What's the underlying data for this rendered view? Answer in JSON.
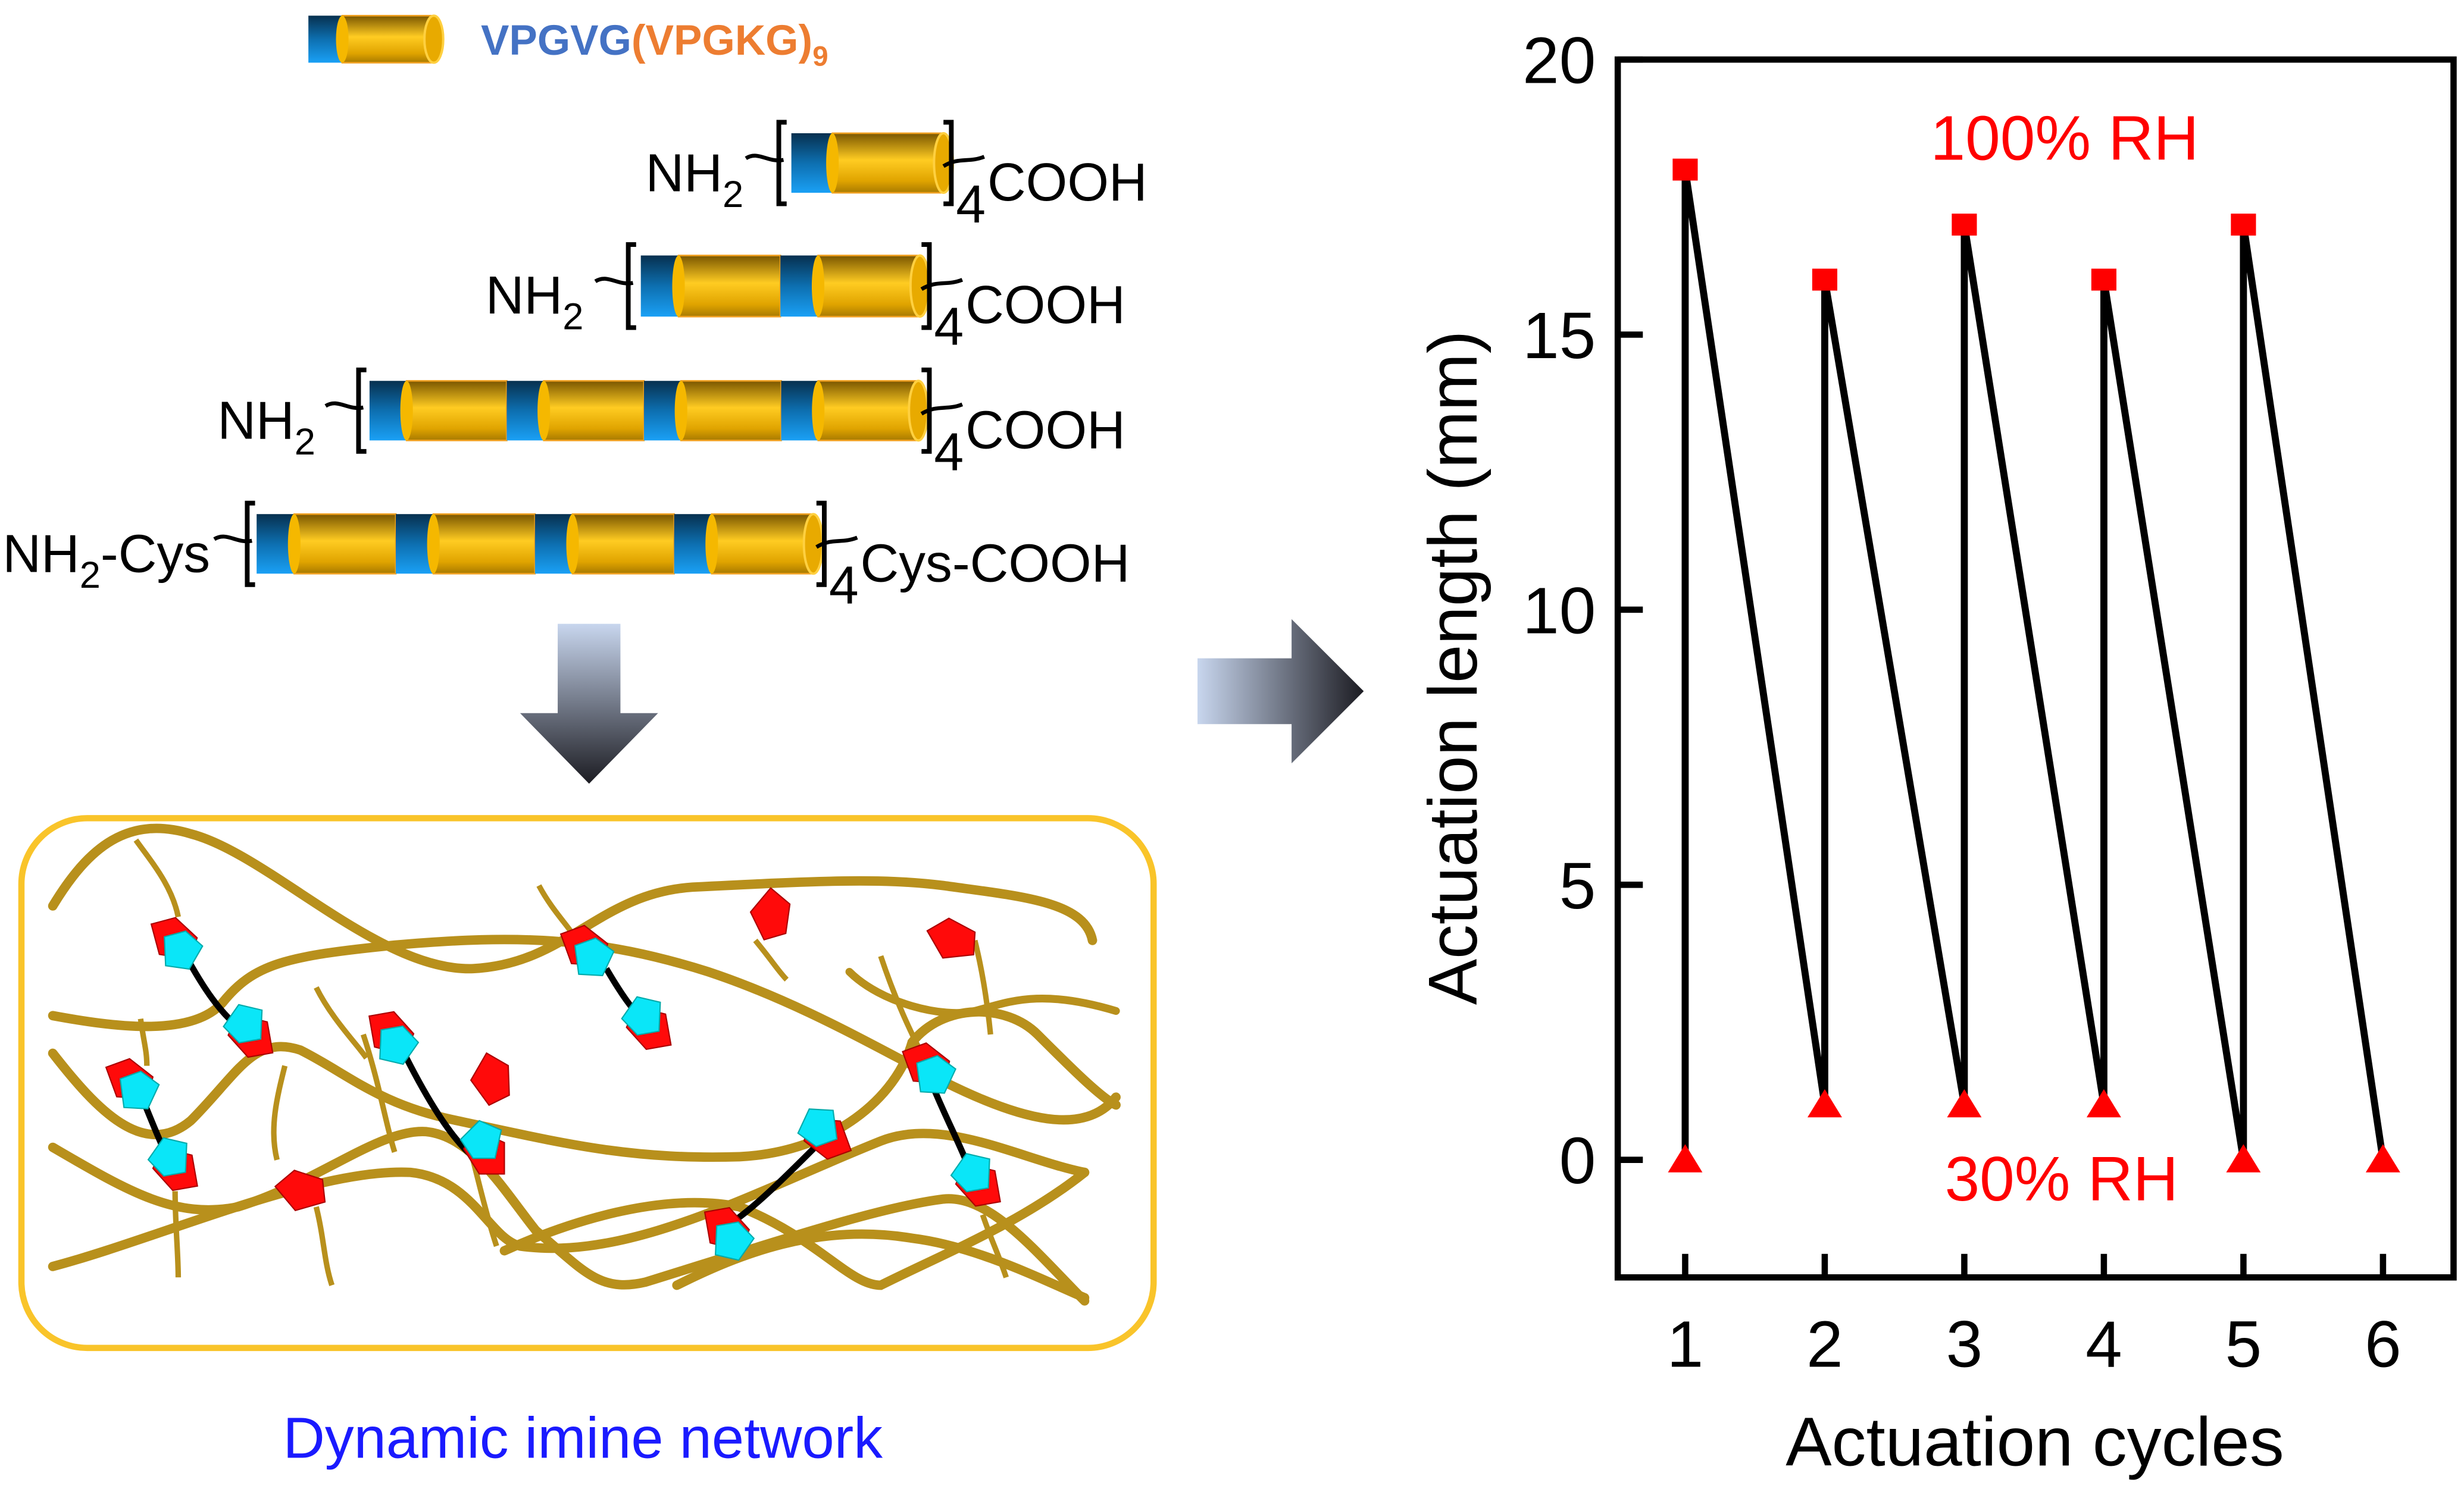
{
  "legend": {
    "sequence_blue": "VPGVG",
    "sequence_orange": "(VPGKG)",
    "sequence_subscript": "9",
    "colors": {
      "blue": "#4472c4",
      "orange": "#ed7d31"
    }
  },
  "polymers": [
    {
      "left": "NH",
      "left_sub": "2",
      "left_suffix": "",
      "repeat": "4",
      "right": "COOH",
      "pairs": 1
    },
    {
      "left": "NH",
      "left_sub": "2",
      "left_suffix": "",
      "repeat": "4",
      "right": "COOH",
      "pairs": 2
    },
    {
      "left": "NH",
      "left_sub": "2",
      "left_suffix": "",
      "repeat": "4",
      "right": "COOH",
      "pairs": 4
    },
    {
      "left": "NH",
      "left_sub": "2",
      "left_suffix": "-Cys",
      "repeat": "4",
      "right": "Cys-COOH",
      "pairs": 4
    }
  ],
  "network": {
    "caption": "Dynamic imine network",
    "colors": {
      "fiber": "#b8901c",
      "frame": "#f9c42a",
      "aldehyde": "#ff0a0a",
      "amine": "#0ae6f8",
      "caption": "#1a1aff"
    }
  },
  "chart_data": {
    "type": "line",
    "xlabel": "Actuation cycles",
    "ylabel": "Actuation length (mm)",
    "xlim": [
      0.5,
      6.5
    ],
    "ylim": [
      -2,
      20
    ],
    "xticks": [
      1,
      2,
      3,
      4,
      5,
      6
    ],
    "yticks": [
      0,
      5,
      10,
      15,
      20
    ],
    "grid": false,
    "annotations": [
      {
        "text": "100% RH",
        "color": "#ff0000"
      },
      {
        "text": "30% RH",
        "color": "#ff0000"
      }
    ],
    "series": [
      {
        "marker": "square",
        "color": "#ff0000",
        "x": [
          1,
          2,
          3,
          4,
          5
        ],
        "y": [
          18,
          16,
          17,
          16,
          17
        ]
      },
      {
        "marker": "triangle",
        "color": "#ff0000",
        "x": [
          1,
          2,
          3,
          4,
          5,
          6
        ],
        "y": [
          0,
          1,
          1,
          1,
          0,
          0
        ]
      }
    ],
    "connecting_path": {
      "color": "#000000",
      "x": [
        1,
        1,
        2,
        2,
        3,
        3,
        4,
        4,
        5,
        5,
        6
      ],
      "y": [
        0,
        18,
        1,
        16,
        1,
        17,
        1,
        16,
        0,
        17,
        0
      ]
    }
  }
}
